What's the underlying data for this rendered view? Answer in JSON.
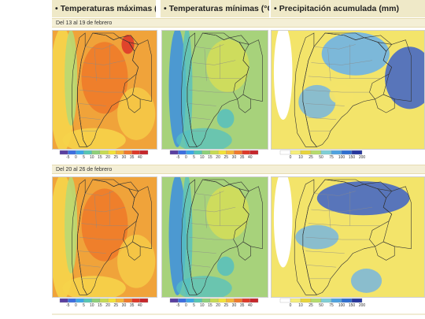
{
  "headers": [
    {
      "text": "Temperaturas máximas (°C)"
    },
    {
      "text": "Temperaturas mínimas (°C)"
    },
    {
      "text": "Precipitación acumulada (mm)"
    }
  ],
  "periods": [
    {
      "label": "Del 13 al 19 de febrero"
    },
    {
      "label": "Del 20 al 26 de febrero"
    }
  ],
  "legends": {
    "temperature": {
      "ticks": [
        "-5",
        "0",
        "5",
        "10",
        "15",
        "20",
        "25",
        "30",
        "35",
        "40"
      ],
      "colors": [
        "#5a3fa0",
        "#3d6ee0",
        "#3ca6e8",
        "#56c7b4",
        "#8fd07a",
        "#c6db55",
        "#f2e23a",
        "#f6b73a",
        "#f07a2e",
        "#de3a2a",
        "#c6262b"
      ]
    },
    "precipitation": {
      "ticks": [
        "0",
        "10",
        "25",
        "50",
        "75",
        "100",
        "150",
        "200"
      ],
      "colors": [
        "#ffffff",
        "#f6ee79",
        "#e8d53d",
        "#b7dc6c",
        "#7fcfd6",
        "#4fa3e0",
        "#2f6fd0",
        "#26379e"
      ]
    }
  },
  "map_colors": {
    "max_base": "#f0a33a",
    "max_hot": "#ee7b2a",
    "max_warm": "#f6d34a",
    "max_cool": "#b9d873",
    "min_base": "#a7d27b",
    "min_warm": "#d8df56",
    "min_cool": "#56c0c0",
    "min_cold": "#3c8fe0",
    "pp_base": "#f3e46a",
    "pp_wet": "#6fb3e6",
    "pp_verywet": "#3c62c8",
    "pp_dry": "#ffffff",
    "border": "#8a8a8a",
    "coast": "#333333",
    "frame": "#cfcfcf"
  }
}
